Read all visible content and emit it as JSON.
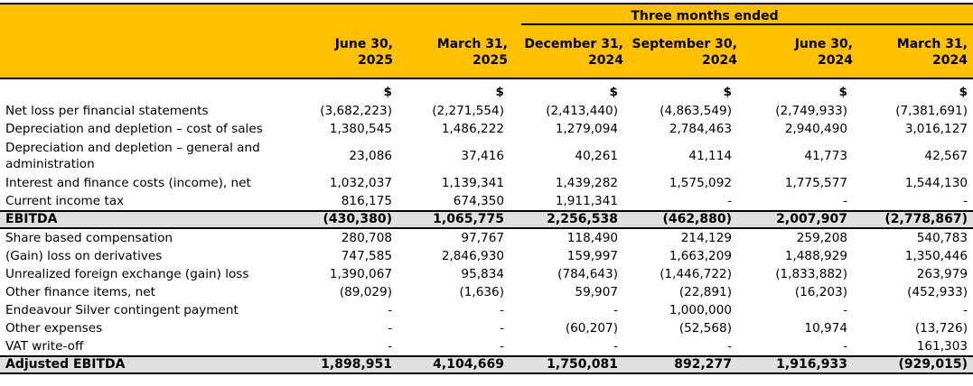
{
  "header": {
    "span_title": "Three months ended",
    "columns": [
      {
        "line1": "June 30,",
        "line2": "2025"
      },
      {
        "line1": "March 31,",
        "line2": "2025"
      },
      {
        "line1": "December 31,",
        "line2": "2024"
      },
      {
        "line1": "September 30,",
        "line2": "2024"
      },
      {
        "line1": "June 30,",
        "line2": "2024"
      },
      {
        "line1": "March 31,",
        "line2": "2024"
      }
    ],
    "header_color": "#ffc000"
  },
  "currency_symbol": "$",
  "rows": [
    {
      "label": "Net loss per financial statements",
      "values": [
        "(3,682,223)",
        "(2,271,554)",
        "(2,413,440)",
        "(4,863,549)",
        "(2,749,933)",
        "(7,381,691)"
      ]
    },
    {
      "label": "Depreciation and depletion – cost of sales",
      "values": [
        "1,380,545",
        "1,486,222",
        "1,279,094",
        "2,784,463",
        "2,940,490",
        "3,016,127"
      ]
    },
    {
      "label": "Depreciation and depletion – general and administration",
      "values": [
        "23,086",
        "37,416",
        "40,261",
        "41,114",
        "41,773",
        "42,567"
      ]
    },
    {
      "label": "Interest and finance costs (income), net",
      "values": [
        "1,032,037",
        "1,139,341",
        "1,439,282",
        "1,575,092",
        "1,775,577",
        "1,544,130"
      ]
    },
    {
      "label": "Current income tax",
      "values": [
        "816,175",
        "674,350",
        "1,911,341",
        "-",
        "-",
        "-"
      ]
    },
    {
      "label": "EBITDA",
      "values": [
        "(430,380)",
        "1,065,775",
        "2,256,538",
        "(462,880)",
        "2,007,907",
        "(2,778,867)"
      ]
    },
    {
      "label": "Share based compensation",
      "values": [
        "280,708",
        "97,767",
        "118,490",
        "214,129",
        "259,208",
        "540,783"
      ]
    },
    {
      "label": "(Gain) loss on derivatives",
      "values": [
        "747,585",
        "2,846,930",
        "159,997",
        "1,663,209",
        "1,488,929",
        "1,350,446"
      ]
    },
    {
      "label": "Unrealized foreign exchange (gain) loss",
      "values": [
        "1,390,067",
        "95,834",
        "(784,643)",
        "(1,446,722)",
        "(1,833,882)",
        "263,979"
      ]
    },
    {
      "label": "Other finance items, net",
      "values": [
        "(89,029)",
        "(1,636)",
        "59,907",
        "(22,891)",
        "(16,203)",
        "(452,933)"
      ]
    },
    {
      "label": "Endeavour Silver contingent payment",
      "values": [
        "-",
        "-",
        "-",
        "1,000,000",
        "-",
        "-"
      ]
    },
    {
      "label": "Other expenses",
      "values": [
        "-",
        "-",
        "(60,207)",
        "(52,568)",
        "10,974",
        "(13,726)"
      ]
    },
    {
      "label": "VAT write-off",
      "values": [
        "-",
        "-",
        "-",
        "-",
        "-",
        "161,303"
      ]
    },
    {
      "label": "Adjusted EBITDA",
      "values": [
        "1,898,951",
        "4,104,669",
        "1,750,081",
        "892,277",
        "1,916,933",
        "(929,015)"
      ]
    }
  ]
}
